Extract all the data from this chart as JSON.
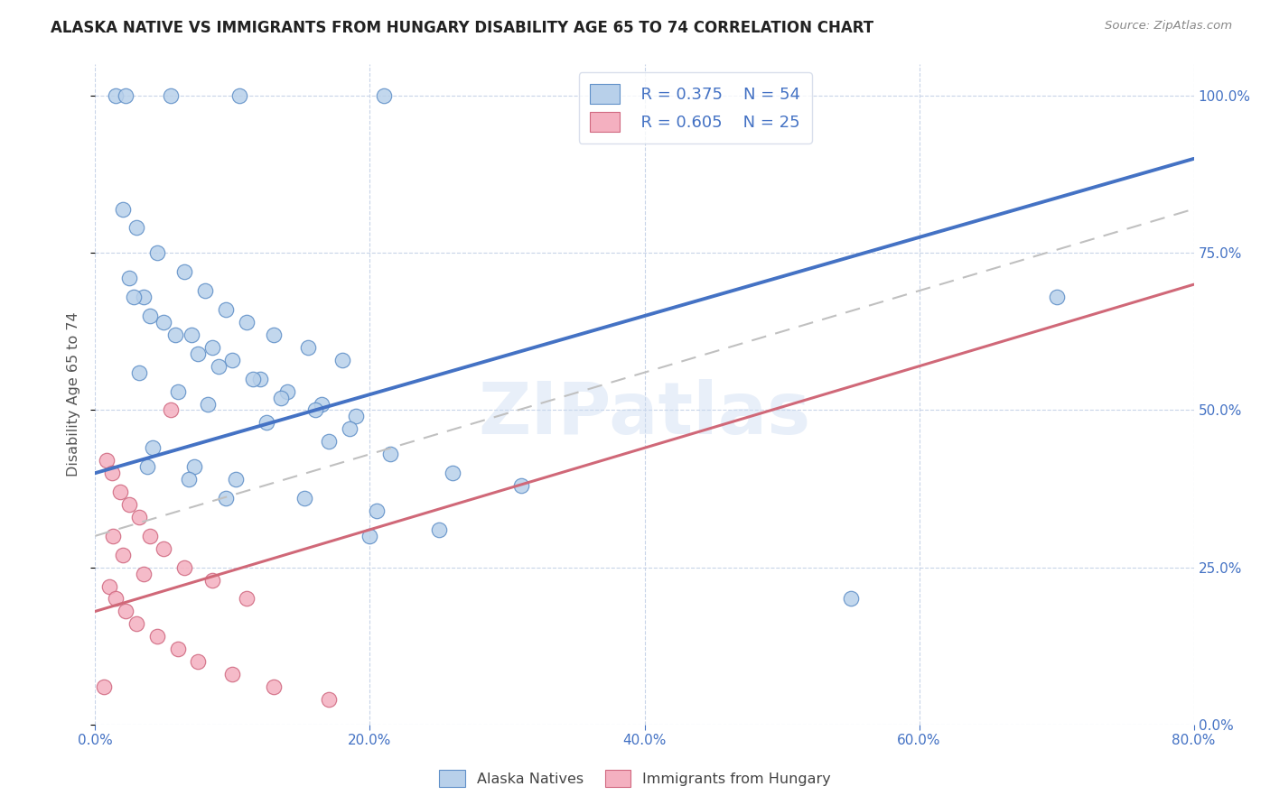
{
  "title": "ALASKA NATIVE VS IMMIGRANTS FROM HUNGARY DISABILITY AGE 65 TO 74 CORRELATION CHART",
  "source": "Source: ZipAtlas.com",
  "ylabel": "Disability Age 65 to 74",
  "x_tick_labels": [
    "0.0%",
    "20.0%",
    "40.0%",
    "60.0%",
    "80.0%"
  ],
  "x_tick_values": [
    0,
    20,
    40,
    60,
    80
  ],
  "y_tick_labels": [
    "0.0%",
    "25.0%",
    "50.0%",
    "75.0%",
    "100.0%"
  ],
  "y_tick_values": [
    0,
    25,
    50,
    75,
    100
  ],
  "xlim": [
    0,
    80
  ],
  "ylim": [
    0,
    105
  ],
  "legend_blue_label": "Alaska Natives",
  "legend_pink_label": "Immigrants from Hungary",
  "r_blue": "R = 0.375",
  "n_blue": "N = 54",
  "r_pink": "R = 0.605",
  "n_pink": "N = 25",
  "blue_fill": "#b8d0ea",
  "blue_edge": "#6090c8",
  "blue_line": "#4472c4",
  "pink_fill": "#f4b0c0",
  "pink_edge": "#d06880",
  "pink_line": "#d06878",
  "gray_dashed_color": "#c0c0c0",
  "background": "#ffffff",
  "grid_color": "#c8d4e8",
  "watermark": "ZIPatlas",
  "blue_scatter_x": [
    1.5,
    2.2,
    5.5,
    10.5,
    21.0,
    2.0,
    3.0,
    4.5,
    6.5,
    8.0,
    9.5,
    11.0,
    13.0,
    15.5,
    18.0,
    2.5,
    3.5,
    5.0,
    7.0,
    8.5,
    10.0,
    12.0,
    14.0,
    16.5,
    19.0,
    2.8,
    4.0,
    5.8,
    7.5,
    9.0,
    11.5,
    13.5,
    16.0,
    18.5,
    3.2,
    6.0,
    8.2,
    12.5,
    17.0,
    21.5,
    26.0,
    31.0,
    4.2,
    7.2,
    10.2,
    15.2,
    20.5,
    25.0,
    3.8,
    6.8,
    9.5,
    20.0,
    55.0,
    70.0
  ],
  "blue_scatter_y": [
    100,
    100,
    100,
    100,
    100,
    82,
    79,
    75,
    72,
    69,
    66,
    64,
    62,
    60,
    58,
    71,
    68,
    64,
    62,
    60,
    58,
    55,
    53,
    51,
    49,
    68,
    65,
    62,
    59,
    57,
    55,
    52,
    50,
    47,
    56,
    53,
    51,
    48,
    45,
    43,
    40,
    38,
    44,
    41,
    39,
    36,
    34,
    31,
    41,
    39,
    36,
    30,
    20,
    68
  ],
  "pink_scatter_x": [
    0.8,
    1.2,
    1.8,
    2.5,
    3.2,
    4.0,
    5.0,
    6.5,
    8.5,
    11.0,
    1.0,
    1.5,
    2.2,
    3.0,
    4.5,
    6.0,
    7.5,
    10.0,
    13.0,
    17.0,
    1.3,
    2.0,
    3.5,
    5.5,
    0.6
  ],
  "pink_scatter_y": [
    42,
    40,
    37,
    35,
    33,
    30,
    28,
    25,
    23,
    20,
    22,
    20,
    18,
    16,
    14,
    12,
    10,
    8,
    6,
    4,
    30,
    27,
    24,
    50,
    6
  ]
}
